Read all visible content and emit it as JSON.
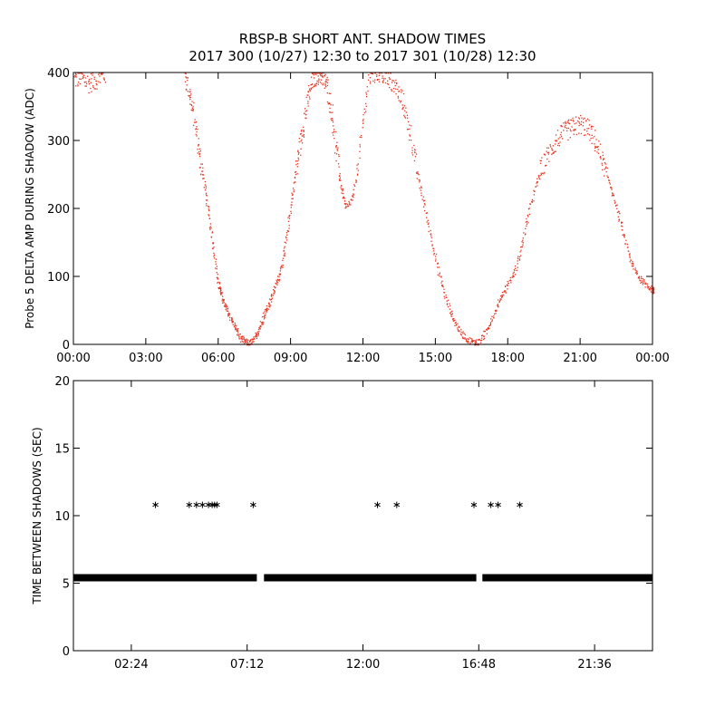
{
  "figure": {
    "title_line1": "RBSP-B SHORT ANT. SHADOW TIMES",
    "title_line2": "2017 300 (10/27) 12:30 to 2017 301 (10/28) 12:30"
  },
  "colors": {
    "top_points": "#e8321e",
    "bottom_points": "#000000",
    "axes": "#000000",
    "background": "#ffffff"
  },
  "chart_data": [
    {
      "type": "scatter",
      "ylabel": "Probe 5 DELTA AMP DURING SHADOW (ADC)",
      "xlabel": "",
      "xlim": [
        0,
        24
      ],
      "ylim": [
        0,
        400
      ],
      "x_unit": "hours",
      "x_tick_values": [
        0,
        3,
        6,
        9,
        12,
        15,
        18,
        21,
        24
      ],
      "x_tick_labels": [
        "00:00",
        "03:00",
        "06:00",
        "09:00",
        "12:00",
        "15:00",
        "18:00",
        "21:00",
        "00:00"
      ],
      "y_tick_values": [
        0,
        100,
        200,
        300,
        400
      ],
      "y_tick_labels": [
        "0",
        "100",
        "200",
        "300",
        "400"
      ],
      "grid": false,
      "series": [
        {
          "x": [
            0.0,
            0.3,
            0.6,
            0.9,
            1.3,
            4.6,
            4.8,
            5.0,
            5.2,
            5.4,
            5.6,
            5.8,
            6.0,
            6.1,
            6.3,
            6.5,
            6.7,
            6.9,
            7.1,
            7.3,
            7.5,
            7.7,
            7.9,
            8.1,
            8.3,
            8.5,
            8.7,
            8.9,
            9.1,
            9.3,
            9.5,
            9.7,
            9.9,
            10.1,
            10.3,
            10.5,
            10.7,
            10.9,
            11.1,
            11.3,
            11.6,
            11.9,
            12.2,
            12.6,
            13.0,
            13.3,
            13.6,
            13.9,
            14.2,
            14.5,
            14.8,
            15.1,
            15.4,
            15.7,
            16.0,
            16.3,
            16.6,
            16.8,
            17.1,
            17.4,
            17.7,
            18.0,
            18.3,
            18.6,
            18.9,
            19.2,
            19.5,
            19.8,
            20.1,
            20.4,
            20.7,
            21.0,
            21.3,
            21.6,
            21.9,
            22.2,
            22.5,
            22.8,
            23.1,
            23.4,
            23.7,
            24.0
          ],
          "y": [
            390,
            395,
            385,
            390,
            398,
            400,
            370,
            330,
            280,
            240,
            190,
            140,
            90,
            75,
            55,
            40,
            25,
            10,
            4,
            2,
            8,
            25,
            45,
            60,
            80,
            100,
            130,
            180,
            230,
            280,
            320,
            360,
            390,
            398,
            395,
            380,
            340,
            280,
            230,
            200,
            220,
            300,
            390,
            400,
            395,
            380,
            360,
            320,
            260,
            210,
            160,
            110,
            70,
            40,
            20,
            8,
            3,
            4,
            20,
            45,
            70,
            90,
            110,
            150,
            200,
            240,
            270,
            290,
            305,
            315,
            320,
            325,
            318,
            300,
            270,
            240,
            200,
            160,
            120,
            100,
            90,
            80
          ]
        }
      ]
    },
    {
      "type": "scatter",
      "ylabel": "TIME BETWEEN SHADOWS (SEC)",
      "xlabel": "",
      "xlim": [
        0,
        24
      ],
      "ylim": [
        0,
        20
      ],
      "x_unit": "hours",
      "x_tick_values": [
        2.4,
        7.2,
        12.0,
        16.8,
        21.6
      ],
      "x_tick_labels": [
        "02:24",
        "07:12",
        "12:00",
        "16:48",
        "21:36"
      ],
      "y_tick_values": [
        0,
        5,
        10,
        15,
        20
      ],
      "y_tick_labels": [
        "0",
        "5",
        "10",
        "15",
        "20"
      ],
      "grid": false,
      "series": [
        {
          "x_ranges": [
            [
              0.0,
              7.6
            ],
            [
              7.9,
              16.7
            ],
            [
              16.95,
              24.0
            ]
          ],
          "y": 5.4,
          "x_points": [
            3.4,
            4.8,
            5.1,
            5.35,
            5.6,
            5.75,
            5.85,
            5.95,
            7.45,
            12.6,
            13.4,
            16.6,
            17.3,
            17.6,
            18.5
          ],
          "y_points": [
            10.8,
            10.8,
            10.8,
            10.8,
            10.8,
            10.8,
            10.8,
            10.8,
            10.8,
            10.8,
            10.8,
            10.8,
            10.8,
            10.8,
            10.8
          ]
        }
      ]
    }
  ]
}
